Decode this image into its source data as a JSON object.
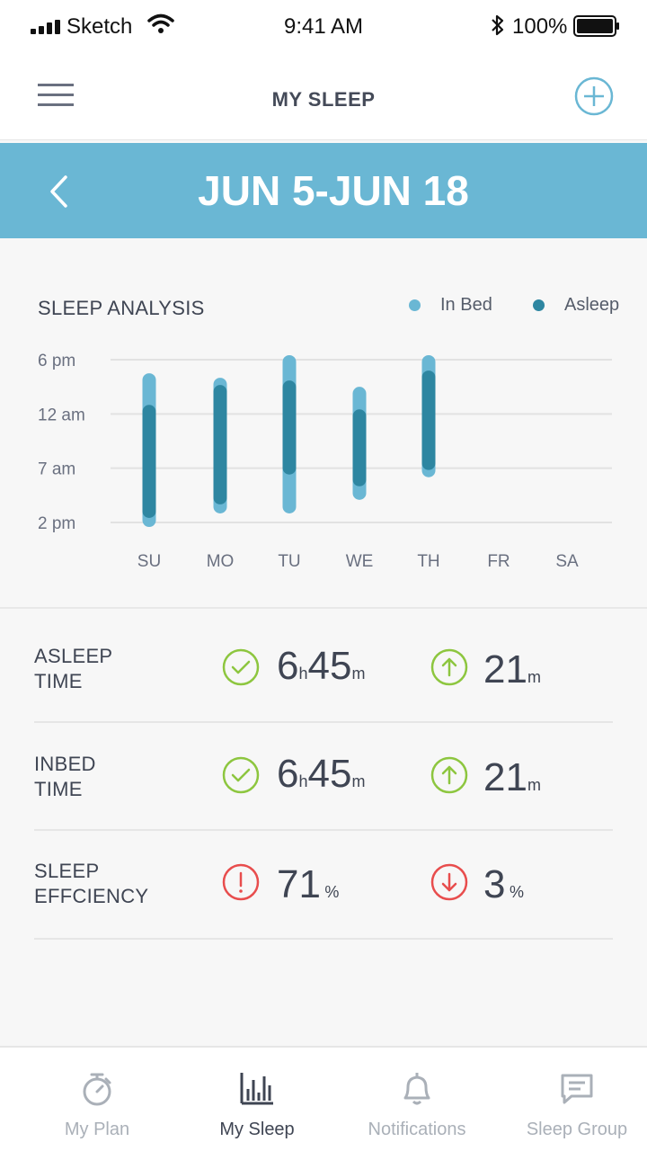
{
  "status_bar": {
    "carrier": "Sketch",
    "time": "9:41 AM",
    "battery": "100%"
  },
  "nav": {
    "title": "MY SLEEP",
    "menu_icon": "hamburger-menu-icon",
    "add_icon": "plus-circle-icon"
  },
  "date_range": {
    "label": "JUN 5-JUN 18",
    "back_icon": "chevron-left-icon"
  },
  "colors": {
    "accent": "#6ab7d4",
    "in_bed": "#6ab7d4",
    "asleep": "#2e86a1",
    "good": "#8dc63f",
    "bad": "#e84d4d"
  },
  "chart_data": {
    "type": "range-bar",
    "title": "SLEEP ANALYSIS",
    "legend": [
      {
        "name": "In Bed",
        "color": "#6ab7d4"
      },
      {
        "name": "Asleep",
        "color": "#2e86a1"
      }
    ],
    "legend_position": "top-right",
    "y_ticks": [
      "6 pm",
      "12 am",
      "7 am",
      "2 pm"
    ],
    "categories": [
      "SU",
      "MO",
      "TU",
      "WE",
      "TH",
      "FR",
      "SA"
    ],
    "y_axis_note": "hours after 6 pm",
    "grid": true,
    "series": [
      {
        "name": "In Bed",
        "values": [
          [
            1.5,
            18.5
          ],
          [
            2.0,
            17.0
          ],
          [
            -0.5,
            17.0
          ],
          [
            3.0,
            15.5
          ],
          [
            -0.5,
            13.0
          ],
          null,
          null
        ]
      },
      {
        "name": "Asleep",
        "values": [
          [
            5.0,
            17.5
          ],
          [
            2.8,
            16.0
          ],
          [
            2.3,
            12.7
          ],
          [
            5.5,
            14.0
          ],
          [
            1.2,
            12.2
          ],
          null,
          null
        ]
      }
    ]
  },
  "metrics": [
    {
      "label_line1": "ASLEEP",
      "label_line2": "TIME",
      "status_icon": "check-circle-icon",
      "v_hours": "6",
      "v_h_unit": "h",
      "v_minutes": "45",
      "v_m_unit": "m",
      "trend_icon": "arrow-up-circle-icon",
      "change": "21",
      "change_unit": "m"
    },
    {
      "label_line1": "INBED",
      "label_line2": "TIME",
      "status_icon": "check-circle-icon",
      "v_hours": "6",
      "v_h_unit": "h",
      "v_minutes": "45",
      "v_m_unit": "m",
      "trend_icon": "arrow-up-circle-icon",
      "change": "21",
      "change_unit": "m"
    },
    {
      "label_line1": "SLEEP",
      "label_line2": "EFFCIENCY",
      "status_icon": "alert-circle-icon",
      "value": "71",
      "value_unit": "%",
      "trend_icon": "arrow-down-circle-icon",
      "change": "3",
      "change_unit": "%"
    }
  ],
  "tabs": [
    {
      "label": "My Plan",
      "icon": "stopwatch-icon",
      "active": false
    },
    {
      "label": "My Sleep",
      "icon": "bar-chart-icon",
      "active": true
    },
    {
      "label": "Notifications",
      "icon": "bell-icon",
      "active": false
    },
    {
      "label": "Sleep Group",
      "icon": "chat-bubble-icon",
      "active": false
    }
  ]
}
